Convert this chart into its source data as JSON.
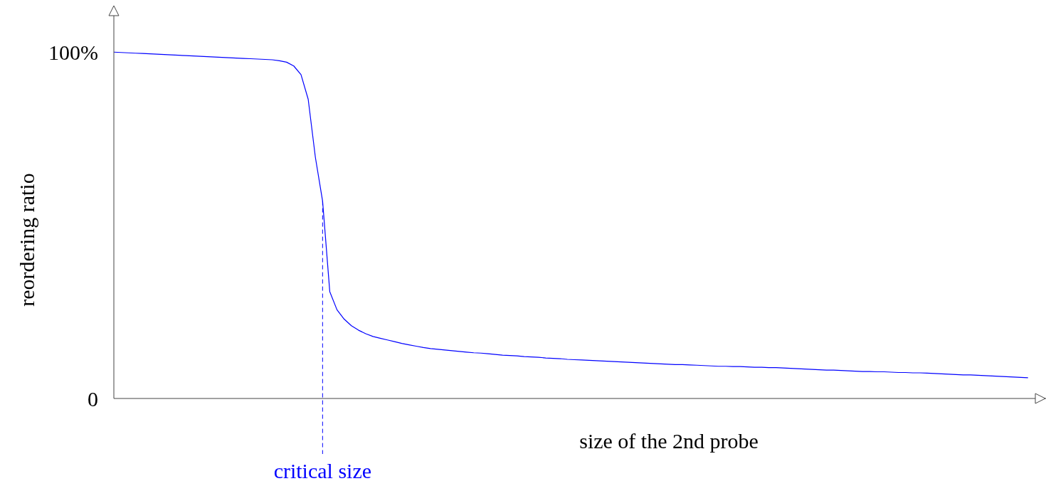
{
  "chart_data": {
    "type": "line",
    "xlabel": "size of the 2nd probe",
    "ylabel": "reordering ratio",
    "categories": [
      null,
      null,
      null,
      null,
      null,
      null,
      null,
      null,
      null,
      null,
      null,
      null,
      null,
      null,
      null,
      null,
      null,
      null,
      null,
      null,
      null,
      null,
      null,
      null,
      null,
      null,
      null,
      null,
      null,
      null,
      null,
      null,
      null,
      null,
      null,
      null,
      null,
      null,
      null,
      null,
      null,
      null,
      null,
      null,
      null,
      null,
      null,
      null,
      null,
      null,
      null,
      null,
      null,
      null,
      null,
      null,
      null,
      null,
      null,
      null,
      null,
      null,
      null,
      null,
      null,
      null,
      null,
      null,
      null,
      null,
      null,
      null,
      null,
      null,
      null,
      null,
      null,
      null,
      null,
      null,
      null,
      null,
      null,
      null,
      null,
      null,
      null,
      null,
      null,
      null,
      null,
      null,
      null,
      null,
      null,
      null,
      null,
      null,
      null,
      null,
      null,
      null,
      null,
      null,
      null,
      null,
      null,
      null,
      null,
      null,
      null,
      null,
      null,
      null,
      null,
      null,
      null,
      null,
      null,
      null,
      null,
      null,
      null,
      null,
      null,
      null,
      null,
      null
    ],
    "series": [
      {
        "color": "#0000ff",
        "values": [
          100,
          99.9,
          99.8,
          99.7,
          99.6,
          99.5,
          99.4,
          99.3,
          99.2,
          99.1,
          99.0,
          98.9,
          98.8,
          98.7,
          98.6,
          98.5,
          98.4,
          98.3,
          98.2,
          98.1,
          98.0,
          97.9,
          97.8,
          97.5,
          97.1,
          96.0,
          93.5,
          86.4,
          69.6,
          57.0,
          30.8,
          25.6,
          22.9,
          21.0,
          19.7,
          18.7,
          17.9,
          17.4,
          16.9,
          16.4,
          15.9,
          15.5,
          15.1,
          14.7,
          14.4,
          14.2,
          14.0,
          13.8,
          13.6,
          13.4,
          13.2,
          13.1,
          12.9,
          12.7,
          12.5,
          12.4,
          12.3,
          12.1,
          12.0,
          11.9,
          11.7,
          11.6,
          11.5,
          11.3,
          11.2,
          11.1,
          11.0,
          10.9,
          10.8,
          10.7,
          10.6,
          10.5,
          10.4,
          10.3,
          10.2,
          10.1,
          10.0,
          9.9,
          9.8,
          9.8,
          9.7,
          9.6,
          9.5,
          9.4,
          9.3,
          9.3,
          9.2,
          9.2,
          9.1,
          9.0,
          9.0,
          8.9,
          8.9,
          8.8,
          8.7,
          8.6,
          8.5,
          8.4,
          8.3,
          8.2,
          8.2,
          8.1,
          8.0,
          7.9,
          7.8,
          7.8,
          7.7,
          7.7,
          7.6,
          7.5,
          7.5,
          7.4,
          7.4,
          7.3,
          7.2,
          7.1,
          7.0,
          6.9,
          6.8,
          6.8,
          6.7,
          6.6,
          6.5,
          6.4,
          6.3,
          6.2,
          6.1,
          6.0
        ]
      }
    ],
    "ylim": [
      0,
      113
    ],
    "yticks": [
      0,
      {
        "value": 100,
        "label": "100%"
      }
    ],
    "annotations": [
      "critical size"
    ],
    "grid": false,
    "legend": false,
    "marker": "none",
    "line_style": "solid"
  }
}
